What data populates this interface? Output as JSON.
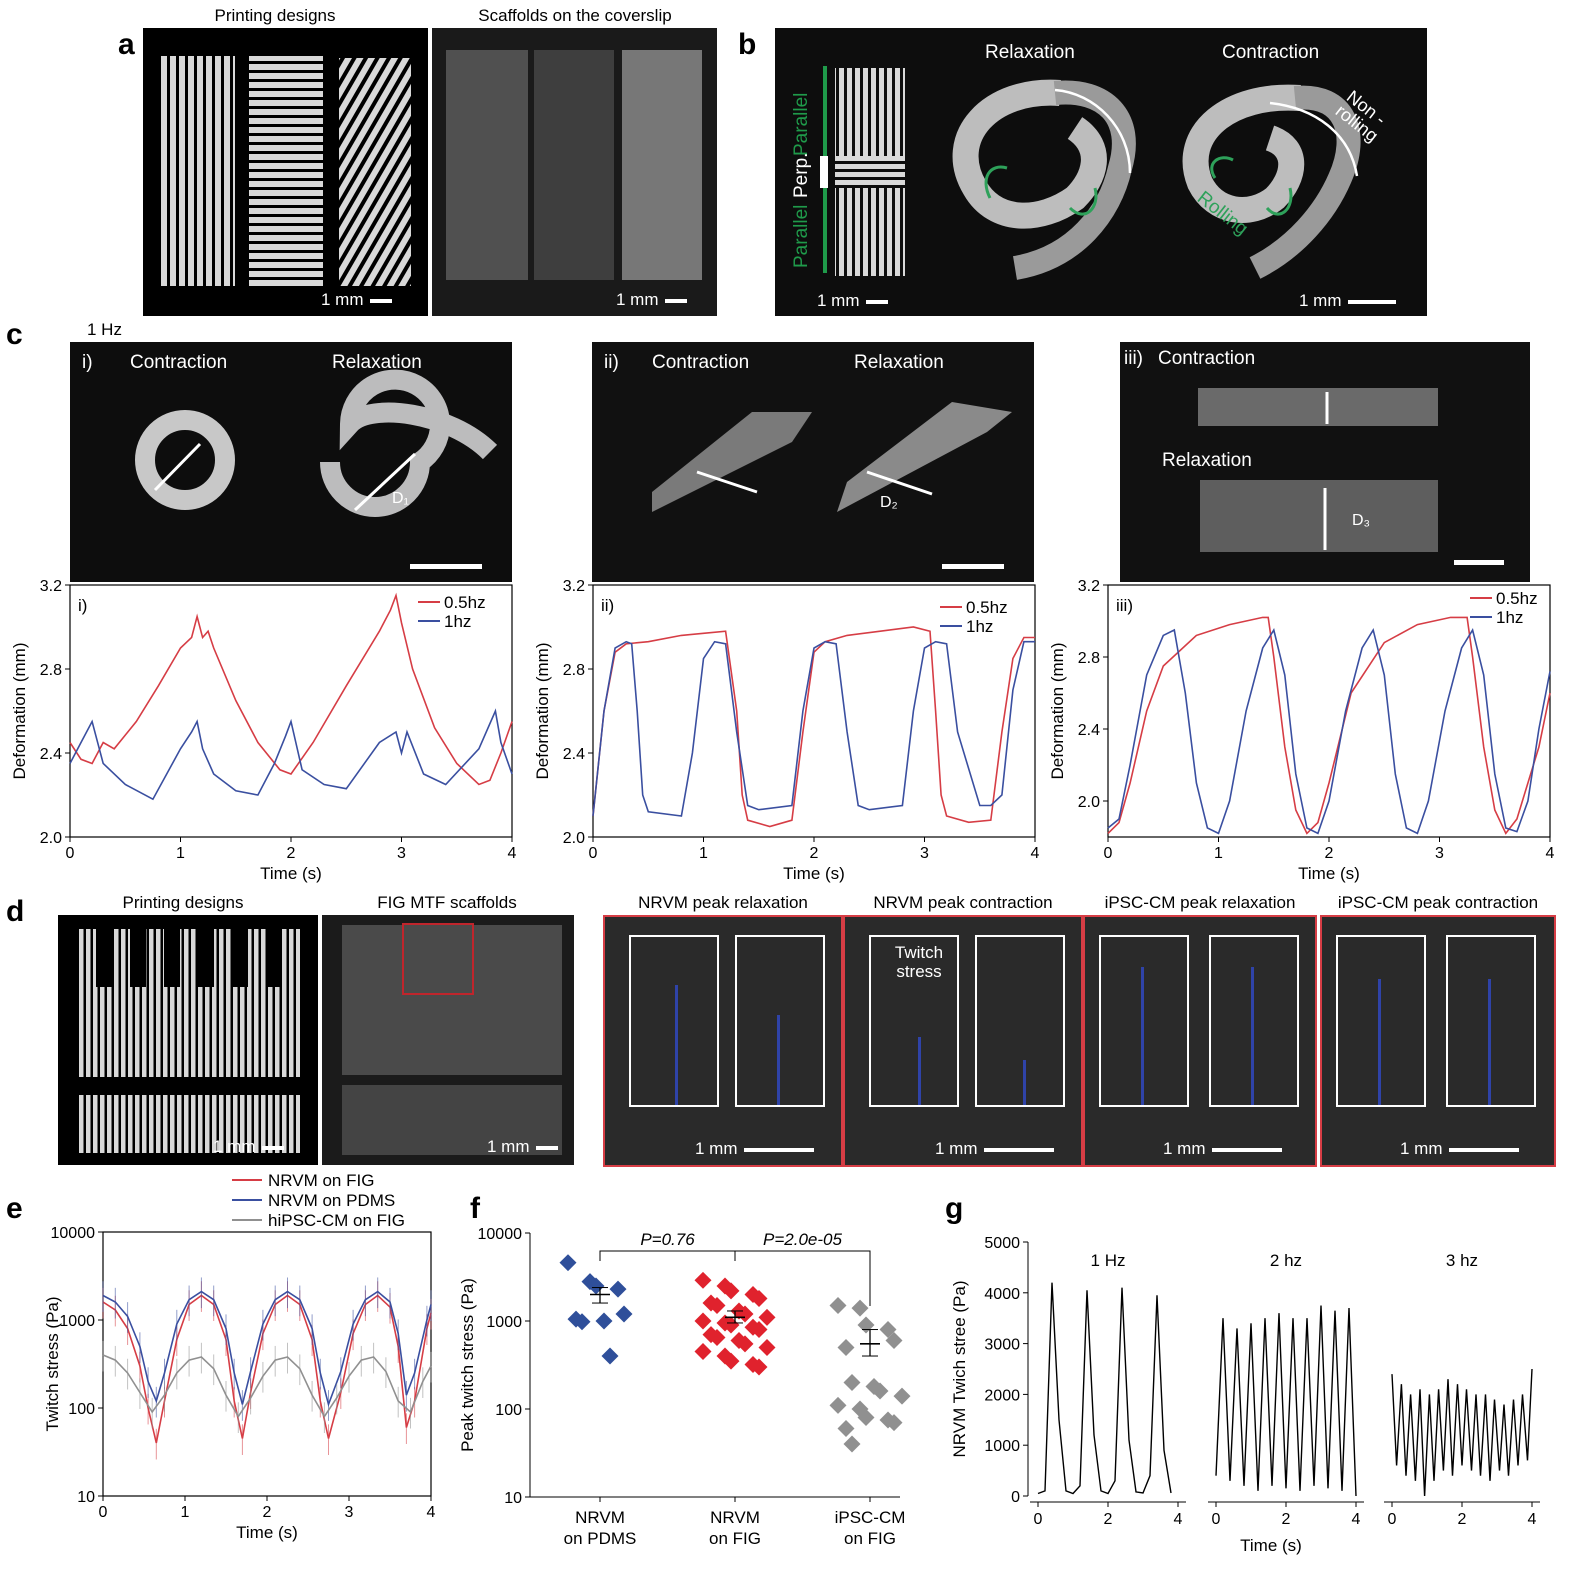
{
  "panels": {
    "a": {
      "label": "a",
      "cap_left": "Printing designs",
      "cap_right": "Scaffolds on the coverslip",
      "scale_left": "1 mm",
      "scale_right": "1 mm"
    },
    "b": {
      "label": "b",
      "relax": "Relaxation",
      "contract": "Contraction",
      "non_rolling": "Non -rolling",
      "rolling": "Rolling",
      "parallel_top": "Parallel",
      "perp": "Perp.",
      "parallel_bottom": "Parallel",
      "scale_left": "1 mm",
      "scale_right": "1 mm"
    },
    "c": {
      "label": "c",
      "freq": "1 Hz",
      "i": {
        "tag": "i)",
        "contraction": "Contraction",
        "relaxation": "Relaxation",
        "d": "D₁"
      },
      "ii": {
        "tag": "ii)",
        "contraction": "Contraction",
        "relaxation": "Relaxation",
        "d": "D₂"
      },
      "iii": {
        "tag": "iii)",
        "contraction": "Contraction",
        "relaxation": "Relaxation",
        "d": "D₃"
      }
    },
    "d": {
      "label": "d",
      "cap1": "Printing designs",
      "cap2": "FIG MTF scaffolds",
      "cap3": "NRVM peak relaxation",
      "cap4": "NRVM peak contraction",
      "cap5": "iPSC-CM peak relaxation",
      "cap6": "iPSC-CM peak contraction",
      "twitch": "Twitch stress",
      "scale": "1 mm"
    },
    "e": {
      "label": "e"
    },
    "f": {
      "label": "f"
    },
    "g": {
      "label": "g"
    }
  },
  "chart_data": [
    {
      "id": "c-i",
      "type": "line",
      "tag": "i)",
      "xlabel": "Time (s)",
      "ylabel": "Deformation (mm)",
      "xlim": [
        0,
        4
      ],
      "ylim": [
        2.0,
        3.2
      ],
      "xticks": [
        "0",
        "1",
        "2",
        "3",
        "4"
      ],
      "yticks": [
        "2.0",
        "2.4",
        "2.8",
        "3.2"
      ],
      "series": [
        {
          "name": "0.5hz",
          "color": "#d63d45",
          "x": [
            0,
            0.1,
            0.2,
            0.3,
            0.4,
            0.6,
            0.8,
            1.0,
            1.1,
            1.15,
            1.2,
            1.25,
            1.3,
            1.5,
            1.7,
            1.9,
            2.0,
            2.2,
            2.5,
            2.8,
            2.9,
            2.95,
            3.0,
            3.1,
            3.3,
            3.5,
            3.7,
            3.8,
            3.9,
            4.0
          ],
          "y": [
            2.45,
            2.37,
            2.35,
            2.45,
            2.42,
            2.55,
            2.72,
            2.9,
            2.95,
            3.05,
            2.95,
            2.98,
            2.9,
            2.65,
            2.45,
            2.32,
            2.3,
            2.45,
            2.72,
            2.98,
            3.08,
            3.15,
            3.02,
            2.8,
            2.52,
            2.35,
            2.25,
            2.27,
            2.4,
            2.55
          ]
        },
        {
          "name": "1hz",
          "color": "#3a4fa0",
          "x": [
            0,
            0.1,
            0.2,
            0.3,
            0.5,
            0.75,
            1.0,
            1.1,
            1.15,
            1.2,
            1.3,
            1.5,
            1.7,
            1.85,
            1.95,
            2.0,
            2.1,
            2.3,
            2.5,
            2.8,
            2.95,
            3.0,
            3.05,
            3.2,
            3.4,
            3.7,
            3.85,
            3.9,
            4.0
          ],
          "y": [
            2.35,
            2.45,
            2.55,
            2.35,
            2.25,
            2.18,
            2.42,
            2.5,
            2.55,
            2.42,
            2.3,
            2.22,
            2.2,
            2.35,
            2.48,
            2.55,
            2.32,
            2.25,
            2.23,
            2.45,
            2.5,
            2.4,
            2.5,
            2.3,
            2.25,
            2.42,
            2.6,
            2.45,
            2.3
          ]
        }
      ]
    },
    {
      "id": "c-ii",
      "type": "line",
      "tag": "ii)",
      "xlabel": "Time (s)",
      "ylabel": "Deformation (mm)",
      "xlim": [
        0,
        4
      ],
      "ylim": [
        2.0,
        3.2
      ],
      "xticks": [
        "0",
        "1",
        "2",
        "3",
        "4"
      ],
      "yticks": [
        "2.0",
        "2.4",
        "2.8",
        "3.2"
      ],
      "series": [
        {
          "name": "0.5hz",
          "color": "#d63d45",
          "x": [
            0,
            0.1,
            0.2,
            0.3,
            0.5,
            0.8,
            1.0,
            1.2,
            1.3,
            1.35,
            1.4,
            1.6,
            1.8,
            1.9,
            2.0,
            2.1,
            2.3,
            2.6,
            2.9,
            3.05,
            3.1,
            3.15,
            3.2,
            3.4,
            3.6,
            3.7,
            3.8,
            3.9,
            4.0
          ],
          "y": [
            2.1,
            2.6,
            2.88,
            2.92,
            2.93,
            2.96,
            2.97,
            2.98,
            2.6,
            2.2,
            2.08,
            2.05,
            2.08,
            2.5,
            2.88,
            2.93,
            2.96,
            2.98,
            3.0,
            2.98,
            2.6,
            2.2,
            2.1,
            2.07,
            2.08,
            2.5,
            2.85,
            2.95,
            2.95
          ]
        },
        {
          "name": "1hz",
          "color": "#3a4fa0",
          "x": [
            0,
            0.1,
            0.2,
            0.3,
            0.35,
            0.4,
            0.45,
            0.5,
            0.8,
            0.9,
            1.0,
            1.1,
            1.2,
            1.3,
            1.4,
            1.5,
            1.8,
            1.9,
            2.0,
            2.1,
            2.2,
            2.3,
            2.4,
            2.5,
            2.8,
            2.9,
            3.0,
            3.1,
            3.2,
            3.3,
            3.5,
            3.6,
            3.7,
            3.8,
            3.9,
            4.0
          ],
          "y": [
            2.1,
            2.6,
            2.9,
            2.93,
            2.92,
            2.6,
            2.2,
            2.12,
            2.1,
            2.4,
            2.85,
            2.93,
            2.92,
            2.5,
            2.15,
            2.13,
            2.15,
            2.6,
            2.9,
            2.93,
            2.92,
            2.5,
            2.15,
            2.13,
            2.15,
            2.6,
            2.9,
            2.93,
            2.92,
            2.5,
            2.15,
            2.15,
            2.2,
            2.7,
            2.93,
            2.93
          ]
        }
      ]
    },
    {
      "id": "c-iii",
      "type": "line",
      "tag": "iii)",
      "xlabel": "Time (s)",
      "ylabel": "Deformation (mm)",
      "xlim": [
        0,
        4
      ],
      "ylim": [
        1.8,
        3.2
      ],
      "xticks": [
        "0",
        "1",
        "2",
        "3",
        "4"
      ],
      "yticks": [
        "2.0",
        "2.4",
        "2.8",
        "3.2"
      ],
      "series": [
        {
          "name": "0.5hz",
          "color": "#d63d45",
          "x": [
            0,
            0.1,
            0.2,
            0.35,
            0.5,
            0.8,
            1.1,
            1.4,
            1.45,
            1.5,
            1.6,
            1.7,
            1.8,
            1.9,
            2.0,
            2.2,
            2.5,
            2.8,
            3.1,
            3.25,
            3.3,
            3.4,
            3.5,
            3.6,
            3.7,
            3.8,
            3.9,
            4.0
          ],
          "y": [
            1.82,
            1.88,
            2.1,
            2.5,
            2.75,
            2.92,
            2.98,
            3.02,
            3.02,
            2.8,
            2.3,
            1.95,
            1.82,
            1.88,
            2.1,
            2.6,
            2.88,
            2.98,
            3.02,
            3.02,
            2.8,
            2.3,
            1.95,
            1.82,
            1.9,
            2.1,
            2.3,
            2.6
          ]
        },
        {
          "name": "1hz",
          "color": "#3a4fa0",
          "x": [
            0,
            0.1,
            0.2,
            0.35,
            0.5,
            0.6,
            0.7,
            0.8,
            0.9,
            1.0,
            1.1,
            1.25,
            1.4,
            1.5,
            1.6,
            1.7,
            1.8,
            1.9,
            2.0,
            2.15,
            2.3,
            2.4,
            2.5,
            2.6,
            2.7,
            2.8,
            2.9,
            3.05,
            3.2,
            3.3,
            3.4,
            3.5,
            3.6,
            3.7,
            3.8,
            3.9,
            4.0
          ],
          "y": [
            1.85,
            1.9,
            2.2,
            2.7,
            2.92,
            2.95,
            2.6,
            2.1,
            1.85,
            1.82,
            2.0,
            2.5,
            2.85,
            2.95,
            2.7,
            2.15,
            1.85,
            1.82,
            2.0,
            2.5,
            2.85,
            2.95,
            2.7,
            2.15,
            1.85,
            1.82,
            2.0,
            2.5,
            2.85,
            2.95,
            2.7,
            2.15,
            1.85,
            1.83,
            2.0,
            2.4,
            2.72
          ]
        }
      ]
    },
    {
      "id": "e",
      "type": "line",
      "ylog": true,
      "xlabel": "Time (s)",
      "ylabel": "Twitch stress (Pa)",
      "xlim": [
        0,
        4
      ],
      "ylim": [
        10,
        10000
      ],
      "xticks": [
        "0",
        "1",
        "2",
        "3",
        "4"
      ],
      "yticks": [
        "10",
        "100",
        "1000",
        "10000"
      ],
      "legend_position": "top",
      "series": [
        {
          "name": "NRVM on FIG",
          "color": "#d63d45",
          "x": [
            0,
            0.15,
            0.3,
            0.45,
            0.55,
            0.65,
            0.75,
            0.9,
            1.05,
            1.2,
            1.35,
            1.5,
            1.6,
            1.7,
            1.8,
            1.95,
            2.1,
            2.25,
            2.4,
            2.55,
            2.65,
            2.75,
            2.9,
            3.05,
            3.2,
            3.35,
            3.5,
            3.6,
            3.7,
            3.8,
            3.95,
            4.0
          ],
          "y": [
            1600,
            1300,
            800,
            300,
            100,
            40,
            120,
            600,
            1500,
            1900,
            1500,
            600,
            120,
            45,
            150,
            700,
            1500,
            1900,
            1500,
            600,
            120,
            45,
            150,
            700,
            1500,
            1900,
            1400,
            500,
            60,
            120,
            800,
            1200
          ]
        },
        {
          "name": "NRVM on PDMS",
          "color": "#3a4fa0",
          "x": [
            0,
            0.15,
            0.3,
            0.45,
            0.55,
            0.65,
            0.75,
            0.9,
            1.05,
            1.2,
            1.35,
            1.5,
            1.6,
            1.7,
            1.8,
            1.95,
            2.1,
            2.25,
            2.4,
            2.55,
            2.65,
            2.75,
            2.9,
            3.05,
            3.2,
            3.35,
            3.5,
            3.6,
            3.7,
            3.8,
            3.95,
            4.0
          ],
          "y": [
            1900,
            1600,
            1100,
            500,
            200,
            120,
            250,
            900,
            1700,
            2100,
            1700,
            800,
            250,
            110,
            260,
            900,
            1700,
            2100,
            1700,
            800,
            250,
            110,
            260,
            900,
            1700,
            2100,
            1600,
            700,
            140,
            250,
            1000,
            1500
          ]
        },
        {
          "name": "hiPSC-CM on FIG",
          "color": "#909090",
          "x": [
            0,
            0.15,
            0.3,
            0.45,
            0.6,
            0.75,
            0.9,
            1.05,
            1.2,
            1.35,
            1.5,
            1.65,
            1.8,
            1.95,
            2.1,
            2.25,
            2.4,
            2.55,
            2.7,
            2.85,
            3.0,
            3.15,
            3.3,
            3.45,
            3.6,
            3.75,
            3.9,
            4.0
          ],
          "y": [
            400,
            350,
            250,
            150,
            90,
            140,
            250,
            350,
            380,
            280,
            140,
            80,
            130,
            230,
            350,
            380,
            280,
            140,
            80,
            130,
            230,
            350,
            380,
            260,
            120,
            90,
            200,
            300
          ]
        }
      ]
    },
    {
      "id": "f",
      "type": "scatter",
      "ylog": true,
      "ylabel": "Peak twitch stress (Pa)",
      "ylim": [
        10,
        10000
      ],
      "yticks": [
        "10",
        "100",
        "1000",
        "10000"
      ],
      "categories": [
        "NRVM\non PDMS",
        "NRVM\non FIG",
        "iPSC-CM\non FIG"
      ],
      "annotations": [
        "P=0.76",
        "P=2.0e-05"
      ],
      "series": [
        {
          "name": "NRVM on PDMS",
          "color": "#2f4f9a",
          "values": [
            4600,
            2800,
            2500,
            2300,
            1200,
            1050,
            980,
            1000,
            400
          ],
          "mean": 2000,
          "sem": [
            1600,
            2400
          ]
        },
        {
          "name": "NRVM on FIG",
          "color": "#e0222d",
          "values": [
            2900,
            2500,
            2200,
            2000,
            1800,
            1600,
            1500,
            1300,
            1200,
            1100,
            1000,
            950,
            900,
            850,
            800,
            700,
            650,
            600,
            550,
            500,
            450,
            400,
            350,
            320,
            300
          ],
          "mean": 1100,
          "sem": [
            950,
            1300
          ]
        },
        {
          "name": "iPSC-CM on FIG",
          "color": "#909090",
          "values": [
            1500,
            1400,
            900,
            800,
            600,
            500,
            200,
            180,
            160,
            140,
            110,
            100,
            80,
            75,
            70,
            60,
            40
          ],
          "mean": 550,
          "sem": [
            400,
            800
          ]
        }
      ]
    },
    {
      "id": "g",
      "type": "line",
      "ylabel": "NRVM Twich stree (Pa)",
      "xlabel": "Time (s)",
      "ylim": [
        0,
        5000
      ],
      "yticks": [
        "0",
        "1000",
        "2000",
        "3000",
        "4000",
        "5000"
      ],
      "xticks": [
        "0",
        "2",
        "4"
      ],
      "subplots": [
        {
          "title": "1 Hz",
          "x": [
            0,
            0.2,
            0.4,
            0.6,
            0.8,
            1.0,
            1.2,
            1.4,
            1.6,
            1.8,
            2.0,
            2.2,
            2.4,
            2.6,
            2.8,
            3.0,
            3.2,
            3.4,
            3.6,
            3.8
          ],
          "y": [
            50,
            100,
            4200,
            1500,
            100,
            50,
            200,
            4050,
            1200,
            100,
            50,
            300,
            4100,
            1100,
            80,
            60,
            400,
            3950,
            900,
            60
          ]
        },
        {
          "title": "2 hz",
          "x": [
            0,
            0.2,
            0.4,
            0.6,
            0.8,
            1.0,
            1.2,
            1.4,
            1.6,
            1.8,
            2.0,
            2.2,
            2.4,
            2.6,
            2.8,
            3.0,
            3.2,
            3.4,
            3.6,
            3.8,
            4.0
          ],
          "y": [
            400,
            3500,
            300,
            3300,
            200,
            3400,
            100,
            3500,
            200,
            3600,
            150,
            3500,
            100,
            3500,
            200,
            3750,
            150,
            3650,
            100,
            3700,
            0
          ]
        },
        {
          "title": "3 hz",
          "x": [
            0,
            0.13,
            0.27,
            0.4,
            0.53,
            0.67,
            0.8,
            0.93,
            1.07,
            1.2,
            1.33,
            1.47,
            1.6,
            1.73,
            1.87,
            2.0,
            2.13,
            2.27,
            2.4,
            2.53,
            2.67,
            2.8,
            2.93,
            3.07,
            3.2,
            3.33,
            3.47,
            3.6,
            3.73,
            3.87,
            4.0
          ],
          "y": [
            2400,
            600,
            2200,
            400,
            2000,
            300,
            2100,
            0,
            2000,
            300,
            2100,
            500,
            2300,
            400,
            2200,
            600,
            2100,
            500,
            2000,
            400,
            2000,
            300,
            1900,
            500,
            1800,
            400,
            1900,
            600,
            2000,
            700,
            2500
          ]
        }
      ]
    }
  ]
}
